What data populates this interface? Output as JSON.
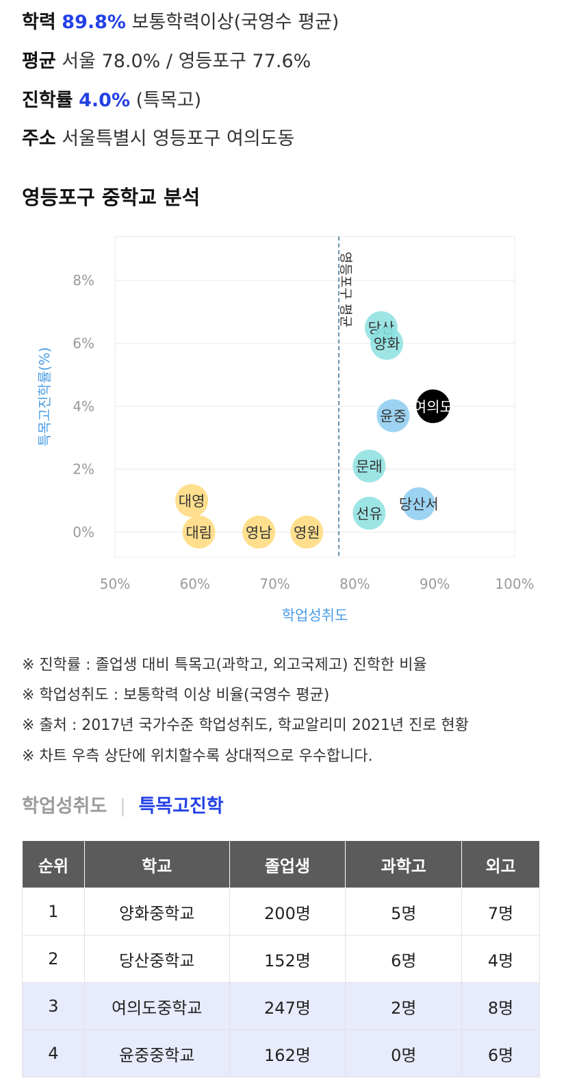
{
  "info": {
    "academic": {
      "label": "학력",
      "value": "89.8%",
      "desc": "보통학력이상(국영수 평균)"
    },
    "average": {
      "label": "평균",
      "text": "서울 78.0% / 영등포구 77.6%"
    },
    "advance": {
      "label": "진학률",
      "value": "4.0%",
      "desc": "(특목고)"
    },
    "address": {
      "label": "주소",
      "text": "서울특별시 영등포구 여의도동"
    }
  },
  "section_title": "영등포구 중학교 분석",
  "chart_data": {
    "type": "scatter",
    "xlabel": "학업성취도",
    "ylabel": "특목고진학률(%)",
    "xlim": [
      50,
      100
    ],
    "ylim": [
      -0.8,
      9.4
    ],
    "xticks": [
      "50%",
      "60%",
      "70%",
      "80%",
      "90%",
      "100%"
    ],
    "xtick_values": [
      50,
      60,
      70,
      80,
      90,
      100
    ],
    "yticks": [
      "0%",
      "2%",
      "4%",
      "6%",
      "8%"
    ],
    "ytick_values": [
      0,
      2,
      4,
      6,
      8
    ],
    "reference_line": {
      "x": 78,
      "label": "영등포구 평균"
    },
    "points": [
      {
        "name": "대영",
        "x": 59.6,
        "y": 1.0,
        "color": "#ffd97a"
      },
      {
        "name": "대림",
        "x": 60.5,
        "y": 0.0,
        "color": "#ffd97a"
      },
      {
        "name": "영남",
        "x": 68.0,
        "y": 0.0,
        "color": "#ffd97a"
      },
      {
        "name": "영원",
        "x": 74.0,
        "y": 0.0,
        "color": "#ffd97a"
      },
      {
        "name": "당산",
        "x": 83.3,
        "y": 6.5,
        "color": "#8ce1e1"
      },
      {
        "name": "양화",
        "x": 84.0,
        "y": 6.0,
        "color": "#8ce1e1"
      },
      {
        "name": "윤중",
        "x": 84.8,
        "y": 3.7,
        "color": "#8ccbf0"
      },
      {
        "name": "여의도",
        "x": 89.8,
        "y": 4.0,
        "color": "#000000"
      },
      {
        "name": "문래",
        "x": 81.8,
        "y": 2.1,
        "color": "#8ce1e1"
      },
      {
        "name": "선유",
        "x": 81.8,
        "y": 0.6,
        "color": "#8ce1e1"
      },
      {
        "name": "당산서",
        "x": 88.0,
        "y": 0.9,
        "color": "#8ccbf0"
      }
    ]
  },
  "notes": [
    "※ 진학률 : 졸업생 대비 특목고(과학고, 외고국제고) 진학한 비율",
    "※ 학업성취도 : 보통학력 이상 비율(국영수 평균)",
    "※ 출처 : 2017년 국가수준 학업성취도, 학교알리미 2021년 진로 현황",
    "※ 차트 우측 상단에 위치할수록 상대적으로 우수합니다."
  ],
  "tabs": {
    "inactive": "학업성취도",
    "active": "특목고진학"
  },
  "table": {
    "headers": [
      "순위",
      "학교",
      "졸업생",
      "과학고",
      "외고"
    ],
    "rows": [
      [
        "1",
        "양화중학교",
        "200명",
        "5명",
        "7명"
      ],
      [
        "2",
        "당산중학교",
        "152명",
        "6명",
        "4명"
      ],
      [
        "3",
        "여의도중학교",
        "247명",
        "2명",
        "8명"
      ],
      [
        "4",
        "윤중중학교",
        "162명",
        "0명",
        "6명"
      ]
    ]
  }
}
